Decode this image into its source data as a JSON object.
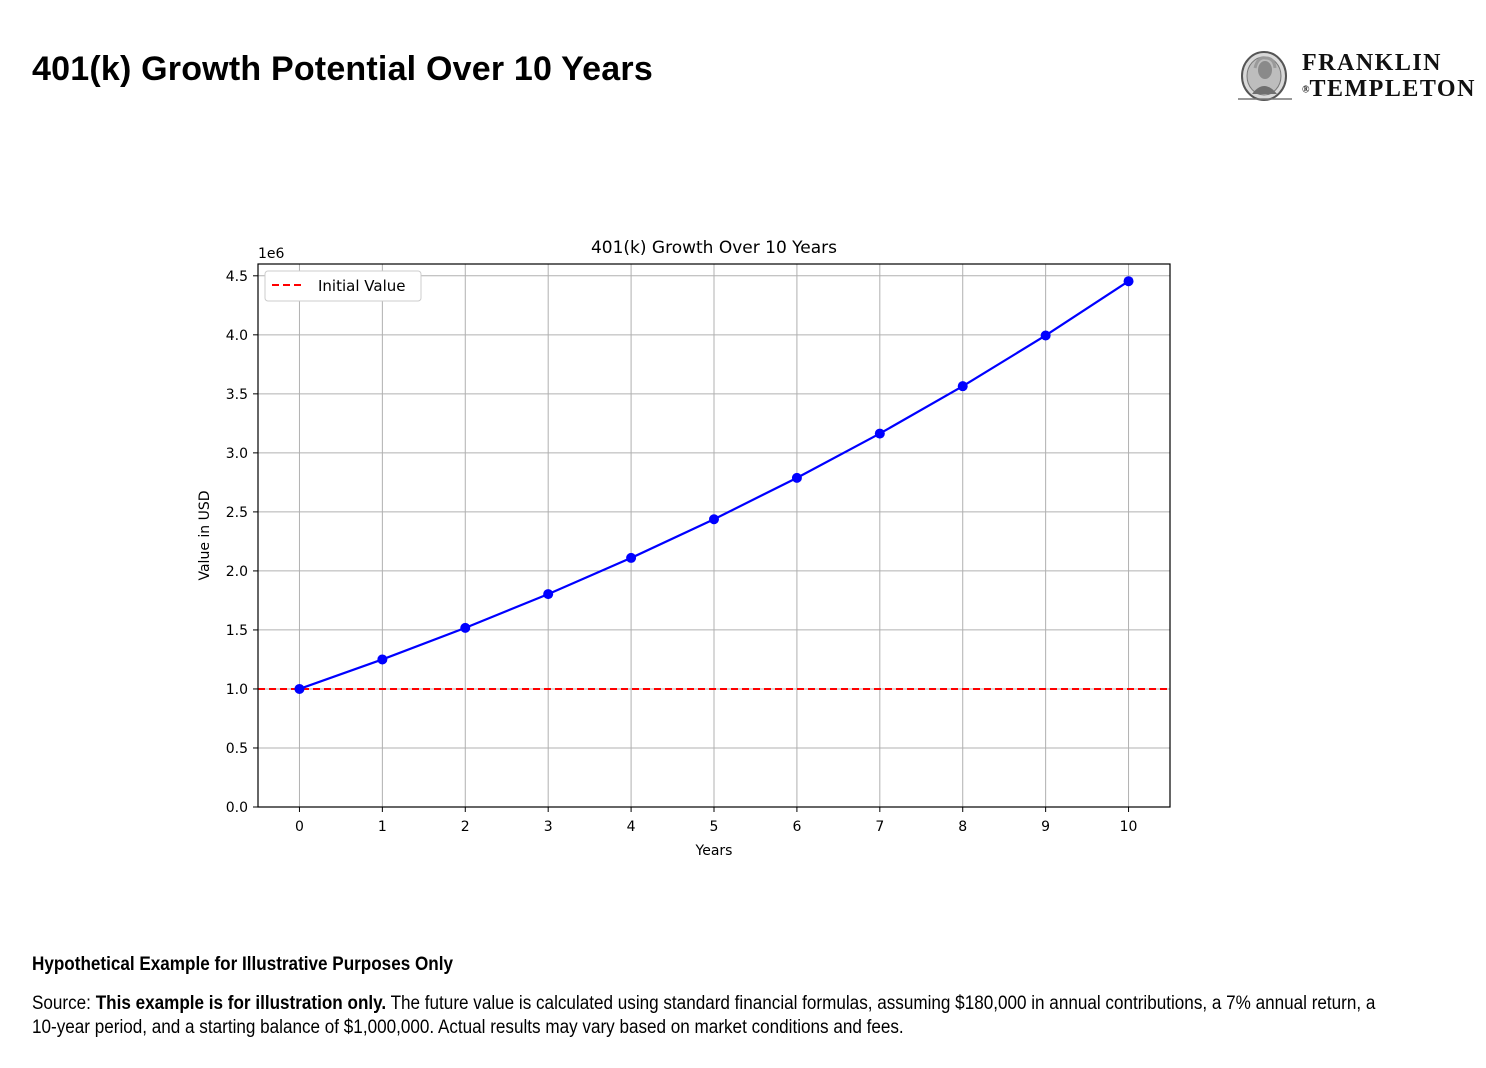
{
  "page": {
    "title": "401(k) Growth Potential Over 10 Years"
  },
  "brand": {
    "line1": "FRANKLIN",
    "line2": "TEMPLETON",
    "registered_mark": "®"
  },
  "footer": {
    "heading": "Hypothetical Example for Illustrative Purposes Only",
    "source_label": "Source: ",
    "source_bold": "This example is for illustration only.",
    "source_text": " The future value is calculated using standard financial formulas, assuming $180,000 in annual contributions, a 7% annual return, a 10-year period, and a starting balance of $1,000,000. Actual results may vary based on market conditions and fees."
  },
  "chart_data": {
    "type": "line",
    "title": "401(k) Growth Over 10 Years",
    "xlabel": "Years",
    "ylabel": "Value in USD",
    "y_offset_label": "1e6",
    "x": [
      0,
      1,
      2,
      3,
      4,
      5,
      6,
      7,
      8,
      9,
      10
    ],
    "series": [
      {
        "values": [
          1000000,
          1250000,
          1517500,
          1803725,
          2109986,
          2437685,
          2788323,
          3163506,
          3564951,
          3994498,
          4454113
        ],
        "color": "#0000ff",
        "marker": "circle"
      }
    ],
    "reference_lines": [
      {
        "name": "Initial Value",
        "y": 1000000,
        "color": "#ff0000",
        "style": "dashed"
      }
    ],
    "xlim": [
      -0.5,
      10.5
    ],
    "ylim": [
      0,
      4.6
    ],
    "y_scale": 1000000,
    "xticks": [
      "0",
      "1",
      "2",
      "3",
      "4",
      "5",
      "6",
      "7",
      "8",
      "9",
      "10"
    ],
    "yticks": [
      "0.0",
      "0.5",
      "1.0",
      "1.5",
      "2.0",
      "2.5",
      "3.0",
      "3.5",
      "4.0",
      "4.5"
    ],
    "grid": true,
    "legend_position": "top-left"
  }
}
